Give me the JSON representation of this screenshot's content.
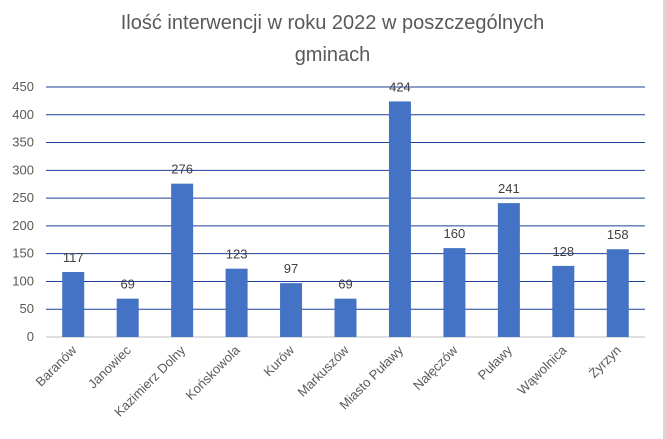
{
  "chart_data": {
    "type": "bar",
    "title_line1": "Ilość interwencji w roku 2022 w poszczególnych",
    "title_line2": "gminach",
    "categories": [
      "Baranów",
      "Janowiec",
      "Kazimierz Dolny",
      "Końskowola",
      "Kurów",
      "Markuszów",
      "Miasto Puławy",
      "Nałęczów",
      "Puławy",
      "Wąwolnica",
      "Żyrzyn"
    ],
    "values": [
      117,
      69,
      276,
      123,
      97,
      69,
      424,
      160,
      241,
      128,
      158
    ],
    "ylim": [
      0,
      450
    ],
    "yticks": [
      0,
      50,
      100,
      150,
      200,
      250,
      300,
      350,
      400,
      450
    ],
    "grid": true,
    "legend": "none",
    "bar_color": "#4472c4",
    "grid_color": "#1f3f9a"
  }
}
